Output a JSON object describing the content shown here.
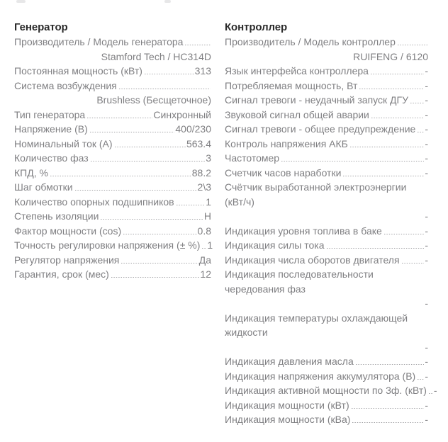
{
  "columns": [
    {
      "title": "Генератор",
      "rows": [
        {
          "label": "Производитель / Модель генератора",
          "value": "Stamford Tech / HC314D",
          "value_on_new_line": true,
          "leader": true
        },
        {
          "label": "Постоянная мощность (кВт)",
          "value": "313",
          "leader": true
        },
        {
          "label": "Система возбуждения",
          "value": "Brushless (Бесщеточное)",
          "value_on_new_line": true,
          "leader": true
        },
        {
          "label": "Тип генератора",
          "value": "Синхронный",
          "leader": true
        },
        {
          "label": "Напряжение (В)",
          "value": "400/230",
          "leader": true
        },
        {
          "label": "Номинальный ток (А)",
          "value": "563.4",
          "leader": true
        },
        {
          "label": "Количество фаз",
          "value": "3",
          "leader": true
        },
        {
          "label": "КПД, %",
          "value": "88.2",
          "leader": true
        },
        {
          "label": "Шаг обмотки",
          "value": "2\\3",
          "leader": true
        },
        {
          "label": "Количество опорных подшипников",
          "value": "1",
          "leader": true
        },
        {
          "label": "Степень изоляции",
          "value": "H",
          "leader": true
        },
        {
          "label": "Фактор мощности (cos)",
          "value": "0.8",
          "leader": true
        },
        {
          "label": "Точность регулировки напряжения (± %)",
          "value": "1",
          "leader": true
        },
        {
          "label": "Регулятор напряжения",
          "value": "Да",
          "leader": true
        },
        {
          "label": "Гарантия, срок (мес)",
          "value": "12",
          "leader": true
        }
      ]
    },
    {
      "title": "Контроллер",
      "rows": [
        {
          "label": "Производитель / Модель контроллер",
          "value": "RUIFENG / 6120",
          "value_on_new_line": true,
          "leader": true
        },
        {
          "label": "Язык интерфейса контроллера",
          "value": "-",
          "leader": true
        },
        {
          "label": "Потребляемая мощность, Вт",
          "value": "-",
          "leader": true
        },
        {
          "label": "Сигнал тревоги - неудачный запуск ДГУ",
          "value": "-",
          "leader": true
        },
        {
          "label": "Звуковой сигнал общей аварии",
          "value": "-",
          "leader": true
        },
        {
          "label": "Сигнал тревоги - общее предупреждение",
          "value": "-",
          "leader": true
        },
        {
          "label": "Контроль напряжения АКБ",
          "value": "-",
          "leader": true
        },
        {
          "label": "Частотомер",
          "value": "-",
          "leader": true
        },
        {
          "label": "Счетчик часов наработки",
          "value": "-",
          "leader": true
        },
        {
          "label": "Счётчик выработанной электроэнергии (кВт/​ч)",
          "value": "-",
          "value_on_new_line": true,
          "leader": false
        },
        {
          "label": "Индикация уровня топлива в баке",
          "value": "-",
          "leader": true
        },
        {
          "label": "Индикация силы тока",
          "value": "-",
          "leader": true
        },
        {
          "label": "Индикация числа оборотов двигателя",
          "value": "-",
          "leader": true
        },
        {
          "label": "Индикация последовательности чередования фаз",
          "value": "-",
          "value_on_new_line": true,
          "leader": false
        },
        {
          "label": "Индикация температуры охлаждающей жидкости",
          "value": "-",
          "value_on_new_line": true,
          "leader": false
        },
        {
          "label": "Индикация давления масла",
          "value": "-",
          "leader": true
        },
        {
          "label": "Индикация напряжения аккумулятора (В)",
          "value": "-",
          "leader": true
        },
        {
          "label": "Индикация активной мощности по 3ф. (кВт)",
          "value": "-",
          "leader": true
        },
        {
          "label": "Индикация мощности (кВт)",
          "value": "-",
          "leader": true
        },
        {
          "label": "Индикация мощности (кВа)",
          "value": "-",
          "leader": true
        }
      ]
    }
  ]
}
